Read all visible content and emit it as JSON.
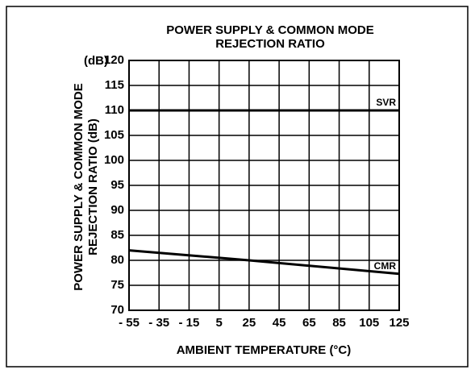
{
  "chart_data": {
    "type": "line",
    "title": [
      "POWER SUPPLY & COMMON MODE",
      "REJECTION RATIO"
    ],
    "y_label": [
      "POWER SUPPLY & COMMON MODE",
      "REJECTION RATIO (dB)"
    ],
    "y_unit": "(dB)",
    "x_label": "AMBIENT TEMPERATURE (°C)",
    "x": [
      -55,
      25,
      125
    ],
    "series": [
      {
        "name": "SVR",
        "color": "#000000",
        "values": [
          110,
          110,
          110
        ]
      },
      {
        "name": "CMR",
        "color": "#000000",
        "values": [
          82,
          80,
          77.3
        ]
      }
    ],
    "xlim": [
      -55,
      125
    ],
    "xticks": [
      {
        "value": -55,
        "label": "- 55"
      },
      {
        "value": -35,
        "label": "- 35"
      },
      {
        "value": -15,
        "label": "- 15"
      },
      5,
      25,
      45,
      65,
      85,
      105,
      125
    ],
    "ylim": [
      70,
      120
    ],
    "yticks": [
      70,
      75,
      80,
      85,
      90,
      95,
      100,
      105,
      110,
      115,
      120
    ],
    "grid": true
  }
}
